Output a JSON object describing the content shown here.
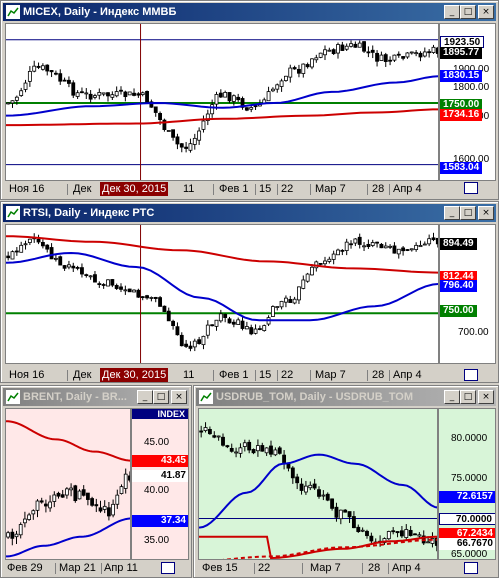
{
  "windows": [
    {
      "id": "micex",
      "title": "MICEX, Daily - Индекс ММВБ",
      "axis_labels": [
        "1900.00",
        "1800.00",
        "1700.00",
        "1600.00"
      ],
      "price_tags": [
        {
          "value": "1923.50",
          "bg": "#ffffff",
          "fg": "#000000"
        },
        {
          "value": "1895.77",
          "bg": "#000000",
          "fg": "#ffffff"
        },
        {
          "value": "1830.15",
          "bg": "#0000ff",
          "fg": "#ffffff"
        },
        {
          "value": "1750.00",
          "bg": "#008000",
          "fg": "#ffffff"
        },
        {
          "value": "1734.16",
          "bg": "#ff0000",
          "fg": "#ffffff"
        },
        {
          "value": "1583.04",
          "bg": "#0000ff",
          "fg": "#ffffff"
        }
      ],
      "x_labels": [
        "Ноя 16",
        "Дек",
        "Дек 30, 2015",
        "11",
        "Фев 1",
        "15",
        "22",
        "Мар 7",
        "28",
        "Апр 4"
      ]
    },
    {
      "id": "rtsi",
      "title": "RTSI, Daily - Индекс РТС",
      "axis_labels": [
        "700.00"
      ],
      "price_tags": [
        {
          "value": "894.49",
          "bg": "#000000",
          "fg": "#ffffff"
        },
        {
          "value": "812.44",
          "bg": "#ff0000",
          "fg": "#ffffff"
        },
        {
          "value": "796.40",
          "bg": "#0000ff",
          "fg": "#ffffff"
        },
        {
          "value": "750.00",
          "bg": "#008000",
          "fg": "#ffffff"
        }
      ],
      "x_labels": [
        "Ноя 16",
        "Дек",
        "Дек 30, 2015",
        "11",
        "Фев 1",
        "15",
        "22",
        "Мар 7",
        "28",
        "Апр 4"
      ]
    },
    {
      "id": "brent",
      "title": "BRENT, Daily - BR...",
      "axis_header": "INDEX",
      "axis_labels": [
        "45.00",
        "40.00",
        "35.00"
      ],
      "price_tags": [
        {
          "value": "43.45",
          "bg": "#ff0000",
          "fg": "#ffffff"
        },
        {
          "value": "41.87",
          "bg": "#ffffff",
          "fg": "#000000"
        },
        {
          "value": "37.34",
          "bg": "#0000ff",
          "fg": "#ffffff"
        }
      ],
      "x_labels": [
        "Фев 29",
        "Мар 21",
        "Апр 11"
      ]
    },
    {
      "id": "usdrub",
      "title": "USDRUB_TOM, Daily - USDRUB_TOM",
      "axis_labels": [
        "80.0000",
        "75.0000",
        "65.0000"
      ],
      "price_tags": [
        {
          "value": "72.6157",
          "bg": "#0000ff",
          "fg": "#ffffff"
        },
        {
          "value": "70.0000",
          "bg": "#ffffff",
          "fg": "#000000"
        },
        {
          "value": "67.2434",
          "bg": "#ff0000",
          "fg": "#ffffff"
        },
        {
          "value": "66.7670",
          "bg": "#ffffff",
          "fg": "#000000"
        }
      ],
      "x_labels": [
        "Фев 15",
        "22",
        "Мар 7",
        "28",
        "Апр 4"
      ]
    }
  ],
  "window_buttons": {
    "minimize": "_",
    "maximize": "□",
    "close": "×"
  },
  "colors": {
    "candle_up": "#ffffff",
    "candle_down": "#000000",
    "ma_fast": "#0000cc",
    "ma_slow": "#cc0000",
    "level_green": "#008000",
    "level_blue": "#000080",
    "cursor": "#800000"
  }
}
